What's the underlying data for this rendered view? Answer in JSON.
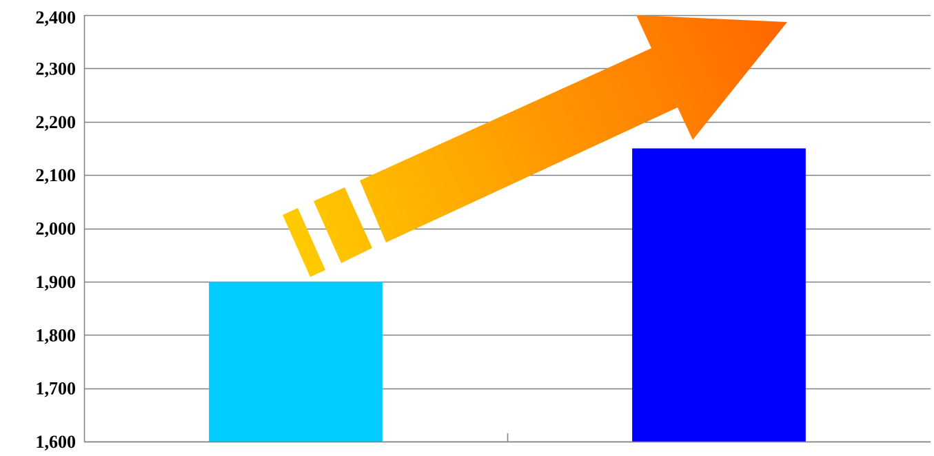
{
  "chart_data": {
    "type": "bar",
    "categories": [
      "",
      ""
    ],
    "values": [
      1900,
      2150
    ],
    "bar_colors": [
      "#00CCFF",
      "#0000FF"
    ],
    "title": "",
    "xlabel": "",
    "ylabel": "",
    "ylim": [
      1600,
      2400
    ],
    "yticks": [
      1600,
      1700,
      1800,
      1900,
      2000,
      2100,
      2200,
      2300,
      2400
    ],
    "ytick_labels": [
      "1,600",
      "1,700",
      "1,800",
      "1,900",
      "2,000",
      "2,100",
      "2,200",
      "2,300",
      "2,400"
    ],
    "grid": true,
    "annotation": {
      "type": "trend-arrow",
      "gradient_colors": [
        "#FFCC00",
        "#FF6600"
      ]
    }
  }
}
